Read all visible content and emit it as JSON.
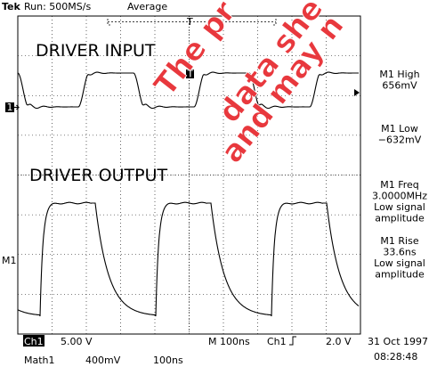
{
  "header": {
    "brand": "Tek",
    "run": "Run: 500MS/s",
    "mode": "Average",
    "trigger_marker": "T"
  },
  "labels": {
    "input": "DRIVER INPUT",
    "output": "DRIVER OUTPUT",
    "ch1_marker": "1",
    "m1_marker": "M1",
    "trigger_level": "T"
  },
  "measurements": [
    {
      "lines": [
        "M1 High",
        "656mV"
      ]
    },
    {
      "lines": [
        "M1 Low",
        "−632mV"
      ]
    },
    {
      "lines": [
        "M1 Freq",
        "3.0000MHz",
        "Low signal",
        "amplitude"
      ]
    },
    {
      "lines": [
        "M1 Rise",
        "33.6ns",
        "Low signal",
        "amplitude"
      ]
    }
  ],
  "status": {
    "ch1": "Ch1",
    "ch1_scale": "5.00 V",
    "timebase": "M 100ns",
    "trig_source": "Ch1",
    "trig_level": "2.0 V",
    "date": "31 Oct 1997",
    "math": "Math1",
    "math_scale": "400mV",
    "math_time": "100ns",
    "time": "08:28:48"
  },
  "watermark": [
    "The pr",
    "data she",
    "and may n"
  ]
}
